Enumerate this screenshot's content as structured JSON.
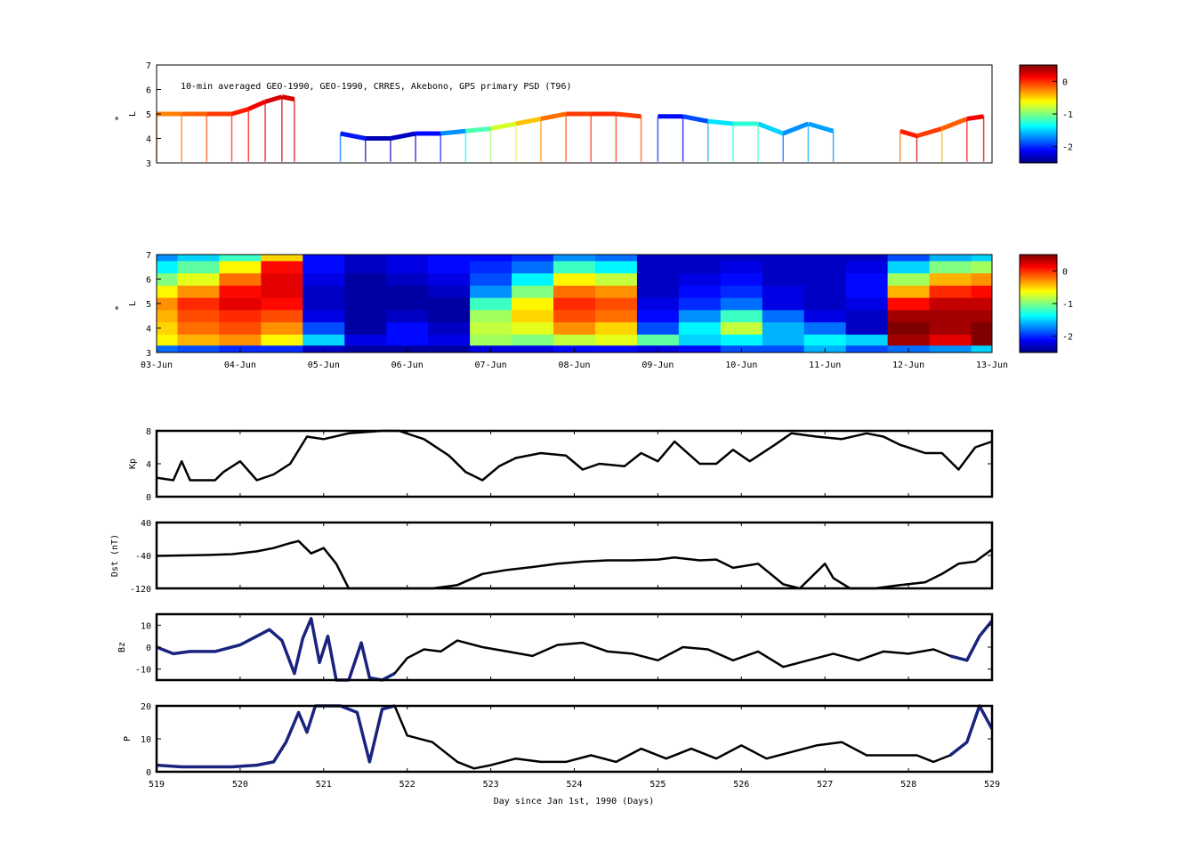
{
  "chart_data": [
    {
      "type": "scatter",
      "id": "psd_obs",
      "annotation": "10-min averaged GEO-1990, GEO-1990, CRRES, Akebono, GPS  primary PSD (T96)",
      "ylabel_main": "L",
      "ylabel_super": "*",
      "ylim": [
        3,
        7
      ],
      "xlim": [
        519,
        529
      ],
      "yticks": [
        "3",
        "4",
        "5",
        "6",
        "7"
      ],
      "colorbar": {
        "ticks": [
          "0",
          "-1",
          "-2"
        ],
        "values": [
          0,
          -1,
          -2
        ],
        "clim": [
          -2.5,
          0.5
        ],
        "colormap": "jet"
      },
      "tracks": [
        {
          "points": [
            [
              519.0,
              5.0,
              -0.3
            ],
            [
              519.3,
              5.0,
              -0.2
            ],
            [
              519.6,
              5.0,
              -0.1
            ],
            [
              519.9,
              5.0,
              0.0
            ],
            [
              520.1,
              5.2,
              0.1
            ],
            [
              520.3,
              5.5,
              0.2
            ],
            [
              520.5,
              5.7,
              0.3
            ],
            [
              520.65,
              5.6,
              0.2
            ]
          ]
        },
        {
          "points": [
            [
              521.2,
              4.2,
              -1.8
            ],
            [
              521.5,
              4.0,
              -2.3
            ],
            [
              521.8,
              4.0,
              -2.4
            ],
            [
              522.1,
              4.2,
              -2.2
            ],
            [
              522.4,
              4.2,
              -2.0
            ],
            [
              522.7,
              4.3,
              -1.4
            ],
            [
              523.0,
              4.4,
              -0.9
            ],
            [
              523.3,
              4.6,
              -0.6
            ],
            [
              523.6,
              4.8,
              -0.3
            ],
            [
              523.9,
              5.0,
              -0.1
            ],
            [
              524.2,
              5.0,
              0.0
            ],
            [
              524.5,
              5.0,
              0.0
            ],
            [
              524.8,
              4.9,
              -0.1
            ]
          ]
        },
        {
          "points": [
            [
              525.0,
              4.9,
              -2.0
            ],
            [
              525.3,
              4.9,
              -2.2
            ],
            [
              525.6,
              4.7,
              -1.6
            ],
            [
              525.9,
              4.6,
              -1.3
            ],
            [
              526.2,
              4.6,
              -1.2
            ],
            [
              526.5,
              4.2,
              -1.8
            ],
            [
              526.8,
              4.6,
              -1.6
            ],
            [
              527.1,
              4.3,
              -1.7
            ]
          ]
        },
        {
          "points": [
            [
              527.9,
              4.3,
              -0.2
            ],
            [
              528.1,
              4.1,
              0.3
            ],
            [
              528.4,
              4.4,
              -0.4
            ],
            [
              528.7,
              4.8,
              0.1
            ],
            [
              528.9,
              4.9,
              0.2
            ]
          ]
        }
      ]
    },
    {
      "type": "heatmap",
      "id": "psd_recon",
      "ylabel_main": "L",
      "ylabel_super": "*",
      "ylim": [
        3,
        7
      ],
      "xlim": [
        519,
        529
      ],
      "yticks": [
        "3",
        "4",
        "5",
        "6",
        "7"
      ],
      "xticklabels": [
        "03-Jun",
        "04-Jun",
        "05-Jun",
        "06-Jun",
        "07-Jun",
        "08-Jun",
        "09-Jun",
        "10-Jun",
        "11-Jun",
        "12-Jun",
        "13-Jun"
      ],
      "colorbar": {
        "ticks": [
          "0",
          "-1",
          "-2"
        ],
        "values": [
          0,
          -1,
          -2
        ],
        "clim": [
          -2.5,
          0.5
        ],
        "colormap": "jet"
      },
      "y_levels": [
        3.1,
        3.5,
        4.0,
        4.5,
        5.0,
        5.5,
        6.0,
        6.5,
        7.0
      ],
      "x_days": [
        519.0,
        519.5,
        520.0,
        520.5,
        521.0,
        521.5,
        522.0,
        522.5,
        523.0,
        523.5,
        524.0,
        524.5,
        525.0,
        525.5,
        526.0,
        526.5,
        527.0,
        527.5,
        528.0,
        528.5,
        529.0
      ],
      "log_psd": [
        [
          -1.8,
          -1.9,
          -2.0,
          -2.0,
          -2.3,
          -2.4,
          -2.4,
          -2.4,
          -2.2,
          -2.2,
          -2.1,
          -2.1,
          -2.2,
          -2.1,
          -1.9,
          -1.9,
          -1.6,
          -1.9,
          -1.8,
          -1.7,
          -1.5
        ],
        [
          -0.6,
          -0.4,
          -0.3,
          -0.6,
          -1.5,
          -2.2,
          -2.1,
          -2.2,
          -0.9,
          -1.0,
          -0.8,
          -0.7,
          -1.1,
          -1.5,
          -1.4,
          -1.6,
          -1.4,
          -1.5,
          0.4,
          0.2,
          0.5
        ],
        [
          -0.5,
          -0.2,
          -0.1,
          -0.3,
          -1.9,
          -2.4,
          -2.1,
          -2.3,
          -0.8,
          -0.7,
          -0.3,
          -0.5,
          -1.9,
          -1.4,
          -0.8,
          -1.6,
          -1.8,
          -2.3,
          0.5,
          0.4,
          0.5
        ],
        [
          -0.4,
          -0.1,
          0.0,
          -0.1,
          -2.2,
          -2.4,
          -2.3,
          -2.4,
          -0.9,
          -0.5,
          -0.1,
          -0.2,
          -2.1,
          -1.7,
          -1.2,
          -1.8,
          -2.2,
          -2.3,
          0.4,
          0.4,
          0.4
        ],
        [
          -0.3,
          0.0,
          0.2,
          0.1,
          -2.3,
          -2.4,
          -2.4,
          -2.4,
          -1.2,
          -0.6,
          0.0,
          -0.1,
          -2.2,
          -2.0,
          -1.8,
          -2.2,
          -2.3,
          -2.2,
          0.1,
          0.3,
          0.3
        ],
        [
          -0.6,
          -0.3,
          0.1,
          0.2,
          -2.3,
          -2.4,
          -2.4,
          -2.3,
          -1.7,
          -1.0,
          -0.2,
          -0.3,
          -2.3,
          -2.1,
          -2.0,
          -2.2,
          -2.3,
          -2.1,
          -0.4,
          0.0,
          0.1
        ],
        [
          -1.0,
          -0.7,
          -0.2,
          0.2,
          -2.2,
          -2.4,
          -2.3,
          -2.2,
          -1.9,
          -1.4,
          -0.6,
          -0.8,
          -2.3,
          -2.2,
          -2.1,
          -2.3,
          -2.3,
          -2.1,
          -0.9,
          -0.4,
          -0.3
        ],
        [
          -1.4,
          -1.1,
          -0.6,
          0.1,
          -2.1,
          -2.3,
          -2.2,
          -2.1,
          -2.0,
          -1.8,
          -1.2,
          -1.4,
          -2.3,
          -2.3,
          -2.2,
          -2.3,
          -2.3,
          -2.2,
          -1.5,
          -1.0,
          -0.9
        ],
        [
          -1.7,
          -1.5,
          -1.2,
          -0.5,
          -2.1,
          -2.3,
          -2.2,
          -2.1,
          -2.1,
          -2.0,
          -1.7,
          -1.8,
          -2.3,
          -2.3,
          -2.3,
          -2.3,
          -2.3,
          -2.3,
          -1.9,
          -1.6,
          -1.5
        ]
      ]
    },
    {
      "type": "line",
      "id": "kp",
      "ylabel": "Kp",
      "ylim": [
        0,
        8
      ],
      "yticks": [
        "0",
        "4",
        "8"
      ],
      "xlim": [
        519,
        529
      ],
      "x": [
        519.0,
        519.2,
        519.3,
        519.4,
        519.7,
        519.8,
        520.0,
        520.2,
        520.4,
        520.6,
        520.8,
        521.0,
        521.3,
        521.7,
        521.9,
        522.2,
        522.5,
        522.7,
        522.9,
        523.1,
        523.3,
        523.6,
        523.9,
        524.1,
        524.3,
        524.6,
        524.8,
        525.0,
        525.2,
        525.5,
        525.7,
        525.9,
        526.1,
        526.4,
        526.6,
        526.9,
        527.2,
        527.5,
        527.7,
        527.9,
        528.2,
        528.4,
        528.6,
        528.8,
        529.0
      ],
      "y": [
        2.3,
        2.0,
        4.3,
        2.0,
        2.0,
        3.0,
        4.3,
        2.0,
        2.7,
        4.0,
        7.3,
        7.0,
        7.7,
        8.0,
        8.0,
        7.0,
        5.0,
        3.0,
        2.0,
        3.7,
        4.7,
        5.3,
        5.0,
        3.3,
        4.0,
        3.7,
        5.3,
        4.3,
        6.7,
        4.0,
        4.0,
        5.7,
        4.3,
        6.3,
        7.7,
        7.3,
        7.0,
        7.7,
        7.3,
        6.3,
        5.3,
        5.3,
        3.3,
        6.0,
        6.7
      ]
    },
    {
      "type": "line",
      "id": "dst",
      "ylabel": "Dst (nT)",
      "ylim": [
        -120,
        40
      ],
      "yticks": [
        "-120",
        "-40",
        "40"
      ],
      "xlim": [
        519,
        529
      ],
      "x": [
        519.0,
        519.3,
        519.6,
        519.9,
        520.2,
        520.4,
        520.6,
        520.7,
        520.85,
        521.0,
        521.15,
        521.3,
        521.5,
        521.8,
        522.3,
        522.6,
        522.9,
        523.2,
        523.5,
        523.8,
        524.1,
        524.4,
        524.7,
        525.0,
        525.2,
        525.5,
        525.7,
        525.9,
        526.2,
        526.5,
        526.7,
        526.85,
        527.0,
        527.1,
        527.3,
        527.6,
        527.9,
        528.2,
        528.4,
        528.6,
        528.8,
        529.0
      ],
      "y": [
        -41,
        -40,
        -39,
        -37,
        -30,
        -22,
        -10,
        -5,
        -35,
        -22,
        -60,
        -122,
        -130,
        -130,
        -125,
        -112,
        -85,
        -75,
        -68,
        -60,
        -55,
        -52,
        -52,
        -50,
        -45,
        -52,
        -50,
        -70,
        -60,
        -110,
        -120,
        -90,
        -60,
        -95,
        -125,
        -120,
        -112,
        -105,
        -85,
        -60,
        -55,
        -25
      ]
    },
    {
      "type": "line",
      "id": "bz",
      "ylabel": "Bz",
      "ylim": [
        -15,
        15
      ],
      "yticks": [
        "-10",
        "0",
        "10"
      ],
      "xlim": [
        519,
        529
      ],
      "x": [
        519.0,
        519.2,
        519.4,
        519.7,
        520.0,
        520.2,
        520.35,
        520.5,
        520.65,
        520.75,
        520.85,
        520.95,
        521.05,
        521.15,
        521.3,
        521.45,
        521.55,
        521.7,
        521.85,
        522.0,
        522.2,
        522.4,
        522.6,
        522.9,
        523.2,
        523.5,
        523.8,
        524.1,
        524.4,
        524.7,
        525.0,
        525.3,
        525.6,
        525.9,
        526.2,
        526.5,
        526.8,
        527.1,
        527.4,
        527.7,
        528.0,
        528.3,
        528.5,
        528.7,
        528.85,
        529.0
      ],
      "y": [
        0,
        -3,
        -2,
        -2,
        1,
        5,
        8,
        3,
        -12,
        4,
        13,
        -7,
        5,
        -18,
        -22,
        2,
        -14,
        -20,
        -12,
        -5,
        -1,
        -2,
        3,
        0,
        -2,
        -4,
        1,
        2,
        -2,
        -3,
        -6,
        0,
        -1,
        -6,
        -2,
        -9,
        -6,
        -3,
        -6,
        -2,
        -3,
        -1,
        -4,
        -6,
        5,
        12
      ]
    },
    {
      "type": "line",
      "id": "pdyn",
      "ylabel": "P",
      "ylim": [
        0,
        20
      ],
      "yticks": [
        "0",
        "10",
        "20"
      ],
      "xlim": [
        519,
        529
      ],
      "xticks": [
        "519",
        "520",
        "521",
        "522",
        "523",
        "524",
        "525",
        "526",
        "527",
        "528",
        "529"
      ],
      "xlabel": "Day since Jan 1st, 1990 (Days)",
      "x": [
        519.0,
        519.3,
        519.6,
        519.9,
        520.2,
        520.4,
        520.55,
        520.7,
        520.8,
        520.9,
        521.0,
        521.2,
        521.4,
        521.55,
        521.7,
        521.85,
        522.0,
        522.3,
        522.6,
        522.8,
        523.0,
        523.3,
        523.6,
        523.9,
        524.2,
        524.5,
        524.8,
        525.1,
        525.4,
        525.7,
        526.0,
        526.3,
        526.6,
        526.9,
        527.2,
        527.5,
        527.8,
        528.1,
        528.3,
        528.5,
        528.7,
        528.85,
        529.0
      ],
      "y": [
        2,
        1.5,
        1.5,
        1.5,
        2,
        3,
        9,
        18,
        12,
        20,
        21,
        24,
        18,
        3,
        19,
        22,
        11,
        9,
        3,
        1,
        2,
        4,
        3,
        3,
        5,
        3,
        7,
        4,
        7,
        4,
        8,
        4,
        6,
        8,
        9,
        5,
        5,
        5,
        3,
        5,
        9,
        20,
        13
      ]
    }
  ]
}
